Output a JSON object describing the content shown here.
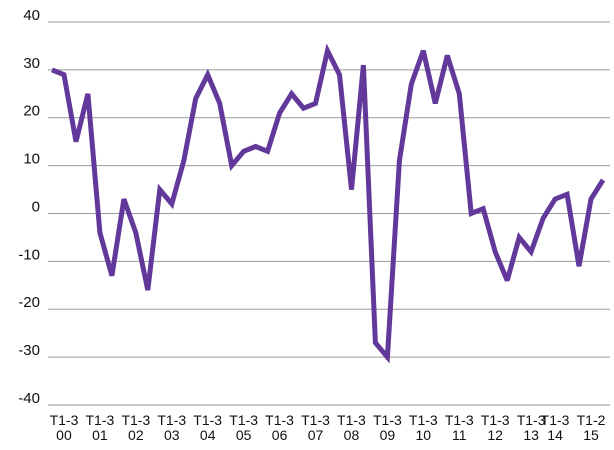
{
  "chart_data": {
    "type": "line",
    "categories": [
      null,
      "T1-3\n00",
      null,
      null,
      "T1-3\n01",
      null,
      null,
      "T1-3\n02",
      null,
      null,
      "T1-3\n03",
      null,
      null,
      "T1-3\n04",
      null,
      null,
      "T1-3\n05",
      null,
      null,
      "T1-3\n06",
      null,
      null,
      "T1-3\n07",
      null,
      null,
      "T1-3\n08",
      null,
      null,
      "T1-3\n09",
      null,
      null,
      "T1-3\n10",
      null,
      null,
      "T1-3\n11",
      null,
      null,
      "T1-3\n12",
      null,
      null,
      "T1-3\n13",
      null,
      "T1-3\n14",
      null,
      null,
      "T1-2\n15",
      null
    ],
    "series": [
      {
        "color": "#62399a",
        "values": [
          30,
          29,
          15,
          25,
          -4,
          -13,
          3,
          -4,
          -16,
          5,
          2,
          11,
          24,
          29,
          23,
          10,
          13,
          14,
          13,
          21,
          25,
          22,
          23,
          34,
          29,
          5,
          31,
          -27,
          -30,
          11,
          27,
          34,
          23,
          33,
          25,
          0,
          1,
          -8,
          -14,
          -5,
          -8,
          -1,
          3,
          4,
          -11,
          3,
          7
        ]
      }
    ],
    "ylim": [
      -40,
      40
    ],
    "yticks": [
      -40,
      -30,
      -20,
      -10,
      0,
      10,
      20,
      30,
      40
    ],
    "grid": true
  }
}
